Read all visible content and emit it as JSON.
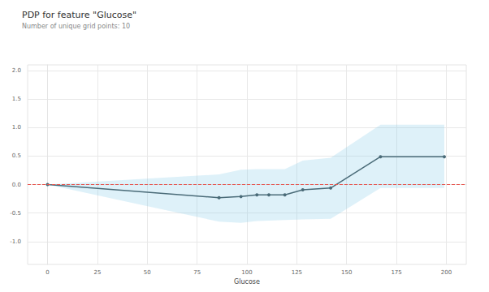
{
  "chart_data": {
    "type": "line",
    "title": "PDP for feature \"Glucose\"",
    "subtitle": "Number of unique grid points: 10",
    "x_label": "Glucose",
    "x": [
      0,
      86,
      97,
      105,
      111,
      119,
      128,
      142,
      167,
      199
    ],
    "values": [
      0,
      -0.23,
      -0.21,
      -0.18,
      -0.18,
      -0.18,
      -0.09,
      -0.06,
      0.49,
      0.49
    ],
    "upper": [
      0,
      0.18,
      0.26,
      0.27,
      0.27,
      0.27,
      0.42,
      0.47,
      1.05,
      1.05
    ],
    "lower": [
      0,
      -0.65,
      -0.67,
      -0.64,
      -0.63,
      -0.62,
      -0.61,
      -0.6,
      -0.06,
      -0.06
    ],
    "baseline": 0,
    "color": "#4a6b78",
    "marker": "circle",
    "xlim": [
      -10,
      210
    ],
    "xticks": [
      0,
      25,
      50,
      75,
      100,
      125,
      150,
      175,
      200
    ],
    "ylim": [
      -1.4,
      2.1
    ],
    "yticks": [
      {
        "value": -1,
        "label": "-1.0"
      },
      {
        "value": -0.5,
        "label": "-0.5"
      },
      {
        "value": 0,
        "label": "0.0"
      },
      {
        "value": 0.5,
        "label": "0.5"
      },
      {
        "value": 1,
        "label": "1.0"
      },
      {
        "value": 1.5,
        "label": "1.5"
      },
      {
        "value": 2,
        "label": "2.0"
      }
    ],
    "grid": true
  }
}
